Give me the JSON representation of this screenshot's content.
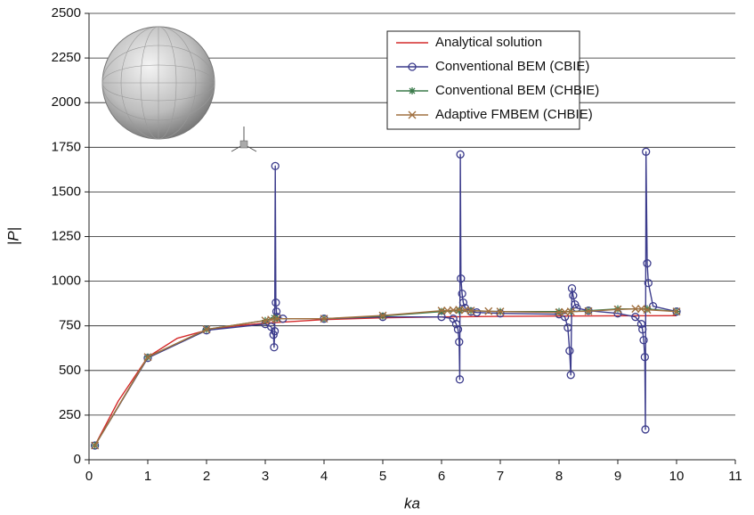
{
  "chart_data": {
    "type": "line",
    "xlabel": "ka",
    "ylabel": "|P|",
    "xlim": [
      0,
      11
    ],
    "xticks": [
      0,
      1,
      2,
      3,
      4,
      5,
      6,
      7,
      8,
      9,
      10,
      11
    ],
    "ylim": [
      0,
      2500
    ],
    "yticks": [
      0,
      250,
      500,
      750,
      1000,
      1250,
      1500,
      1750,
      2000,
      2250,
      2500
    ],
    "grid": true,
    "legend": "upper right",
    "series": [
      {
        "name": "Analytical solution",
        "color": "#d42a2a",
        "marker": "none",
        "x": [
          0.1,
          0.5,
          1,
          1.5,
          2,
          2.5,
          3,
          4,
          5,
          6,
          7,
          8,
          9,
          10
        ],
        "values": [
          80,
          330,
          575,
          680,
          725,
          750,
          765,
          785,
          795,
          800,
          803,
          805,
          806,
          807
        ]
      },
      {
        "name": "Conventional BEM (CBIE)",
        "color": "#3c3c8c",
        "marker": "circle",
        "x": [
          0.1,
          1,
          2,
          3,
          3.1,
          3.14,
          3.15,
          3.16,
          3.17,
          3.18,
          3.19,
          3.2,
          3.3,
          4,
          5,
          6,
          6.2,
          6.25,
          6.28,
          6.3,
          6.31,
          6.32,
          6.33,
          6.35,
          6.37,
          6.4,
          6.5,
          6.6,
          7,
          8,
          8.1,
          8.15,
          8.18,
          8.2,
          8.22,
          8.24,
          8.27,
          8.3,
          8.5,
          9,
          9.3,
          9.4,
          9.42,
          9.44,
          9.46,
          9.47,
          9.48,
          9.5,
          9.52,
          9.6,
          10
        ],
        "values": [
          80,
          570,
          725,
          760,
          745,
          700,
          630,
          720,
          1645,
          880,
          830,
          800,
          790,
          790,
          800,
          800,
          790,
          760,
          730,
          660,
          450,
          1710,
          1015,
          930,
          880,
          850,
          830,
          825,
          820,
          815,
          800,
          740,
          610,
          475,
          960,
          920,
          870,
          850,
          835,
          820,
          800,
          760,
          730,
          670,
          575,
          170,
          1725,
          1100,
          990,
          860,
          830
        ]
      },
      {
        "name": "Conventional BEM (CHBIE)",
        "color": "#3a7a4a",
        "marker": "asterisk",
        "x": [
          0.1,
          1,
          2,
          3,
          3.15,
          3.2,
          4,
          5,
          6,
          6.3,
          6.5,
          7,
          8,
          8.2,
          8.5,
          9,
          9.5,
          10
        ],
        "values": [
          80,
          575,
          730,
          780,
          795,
          790,
          790,
          805,
          830,
          835,
          835,
          830,
          830,
          830,
          835,
          845,
          845,
          830
        ]
      },
      {
        "name": "Adaptive FMBEM (CHBIE)",
        "color": "#a07040",
        "marker": "x",
        "x": [
          0.1,
          1,
          2,
          3,
          3.1,
          3.2,
          4,
          5,
          6,
          6.1,
          6.2,
          6.3,
          6.4,
          6.5,
          6.8,
          7,
          8,
          8.1,
          8.2,
          8.5,
          9,
          9.3,
          9.4,
          9.5,
          10
        ],
        "values": [
          80,
          575,
          730,
          780,
          785,
          790,
          790,
          808,
          835,
          835,
          838,
          840,
          838,
          835,
          832,
          830,
          825,
          828,
          830,
          832,
          842,
          845,
          845,
          840,
          830
        ]
      }
    ]
  }
}
